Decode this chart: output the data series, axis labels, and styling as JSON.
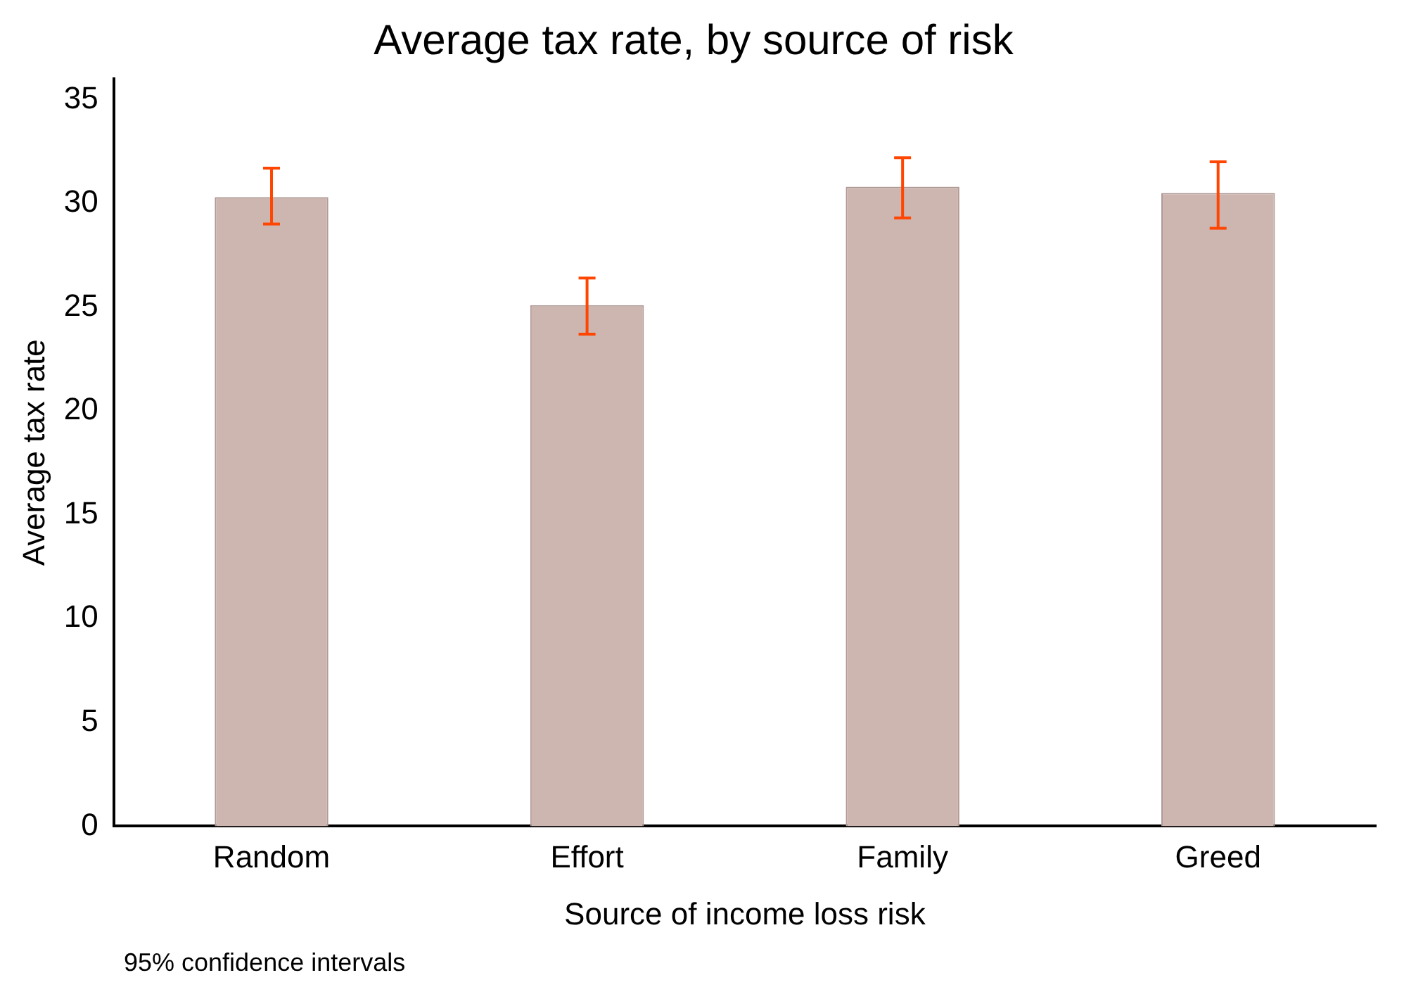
{
  "chart_data": {
    "type": "bar",
    "title": "Average tax rate, by source of risk",
    "xlabel": "Source of income loss risk",
    "ylabel": "Average tax rate",
    "categories": [
      "Random",
      "Effort",
      "Family",
      "Greed"
    ],
    "values": [
      30.3,
      25.1,
      30.8,
      30.5
    ],
    "errors": [
      [
        29.0,
        31.7
      ],
      [
        23.7,
        26.4
      ],
      [
        29.3,
        32.2
      ],
      [
        28.8,
        32.0
      ]
    ],
    "color": "#cdb5b0",
    "ylim": [
      0,
      36
    ],
    "yticks": [
      0,
      5,
      10,
      15,
      20,
      25,
      30,
      35
    ],
    "grid": false,
    "legend": false,
    "annotations": [
      "95% confidence intervals"
    ]
  }
}
